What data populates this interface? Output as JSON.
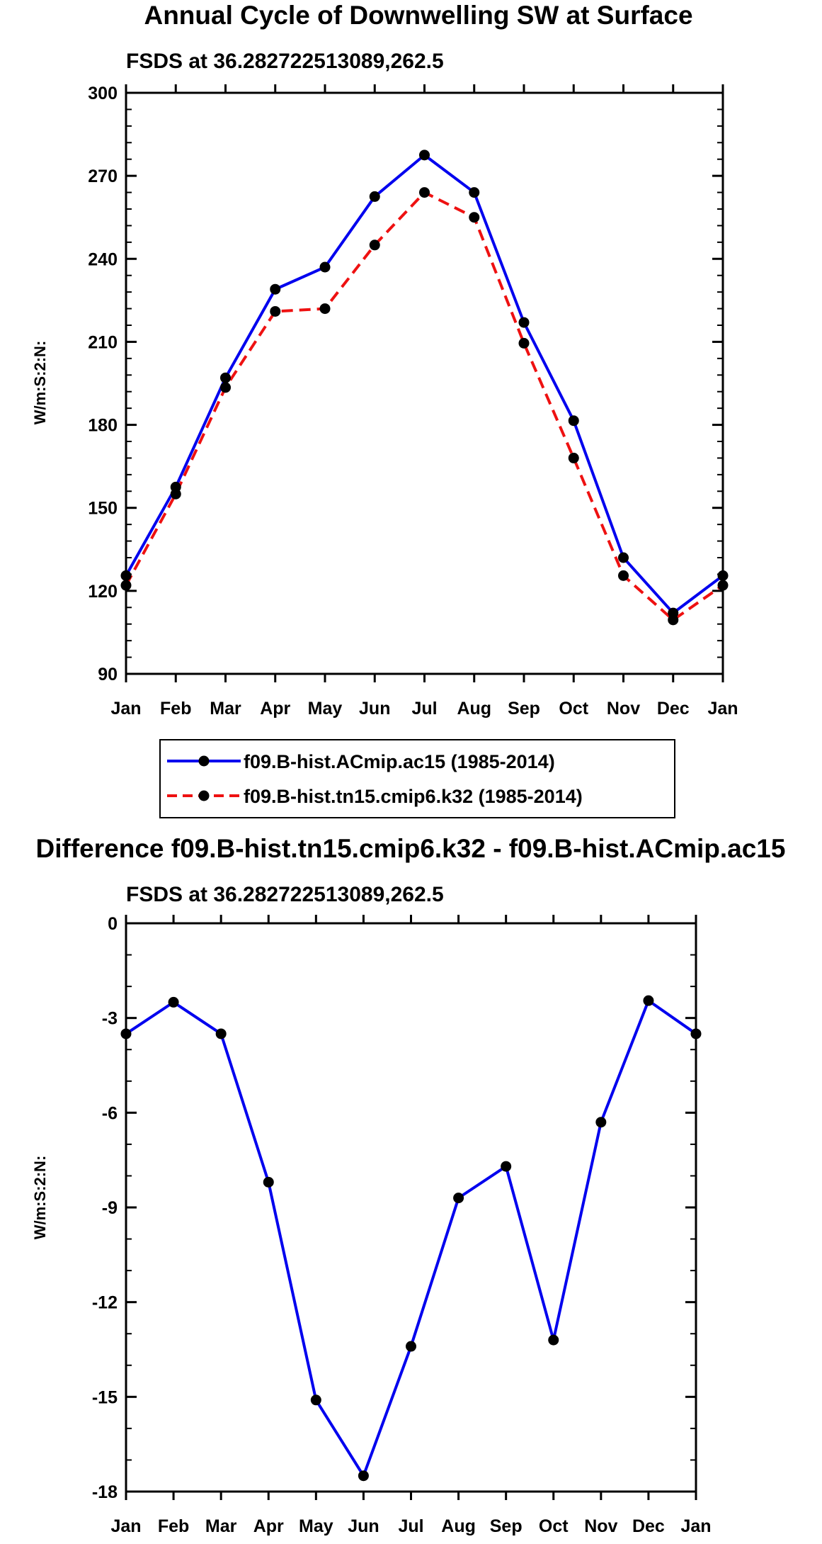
{
  "colors": {
    "s1": "#0000ee",
    "s2": "#ee1111",
    "marker": "#000000"
  },
  "legend": {
    "entries": [
      "f09.B-hist.ACmip.ac15 (1985-2014)",
      "f09.B-hist.tn15.cmip6.k32 (1985-2014)"
    ]
  },
  "chart_data": [
    {
      "type": "line",
      "title": "Annual Cycle of Downwelling SW at Surface",
      "subtitle": "FSDS at 36.282722513089,262.5",
      "ylabel": "W/m:S:2:N:",
      "xlabel": "",
      "categories": [
        "Jan",
        "Feb",
        "Mar",
        "Apr",
        "May",
        "Jun",
        "Jul",
        "Aug",
        "Sep",
        "Oct",
        "Nov",
        "Dec",
        "Jan"
      ],
      "ylim": [
        90,
        300
      ],
      "yticks": [
        90,
        120,
        150,
        180,
        210,
        240,
        270,
        300
      ],
      "ytick_labels": [
        "90",
        "120",
        "150",
        "180",
        "210",
        "240",
        "270",
        "300"
      ],
      "series": [
        {
          "name": "f09.B-hist.ACmip.ac15 (1985-2014)",
          "style": "solid",
          "values": [
            125.5,
            157.5,
            197,
            229,
            237,
            262.5,
            277.5,
            264,
            217,
            181.5,
            132,
            112,
            125.5
          ]
        },
        {
          "name": "f09.B-hist.tn15.cmip6.k32 (1985-2014)",
          "style": "dashed",
          "values": [
            122,
            155,
            193.5,
            221,
            222,
            245,
            264,
            255,
            209.5,
            168,
            125.5,
            109.5,
            122
          ]
        }
      ],
      "legend_position": "below"
    },
    {
      "type": "line",
      "title": "Difference f09.B-hist.tn15.cmip6.k32 - f09.B-hist.ACmip.ac15",
      "subtitle": "FSDS at 36.282722513089,262.5",
      "ylabel": "W/m:S:2:N:",
      "xlabel": "",
      "categories": [
        "Jan",
        "Feb",
        "Mar",
        "Apr",
        "May",
        "Jun",
        "Jul",
        "Aug",
        "Sep",
        "Oct",
        "Nov",
        "Dec",
        "Jan"
      ],
      "ylim": [
        -18,
        0
      ],
      "yticks": [
        -18,
        -15,
        -12,
        -9,
        -6,
        -3,
        0
      ],
      "ytick_labels": [
        "-18",
        "-15",
        "-12",
        "-9",
        "-6",
        "-3",
        "0"
      ],
      "series": [
        {
          "name": "difference",
          "style": "solid",
          "values": [
            -3.5,
            -2.5,
            -3.5,
            -8.2,
            -15.1,
            -17.5,
            -13.4,
            -8.7,
            -7.7,
            -13.2,
            -6.3,
            -2.45,
            -3.5
          ]
        }
      ]
    }
  ]
}
